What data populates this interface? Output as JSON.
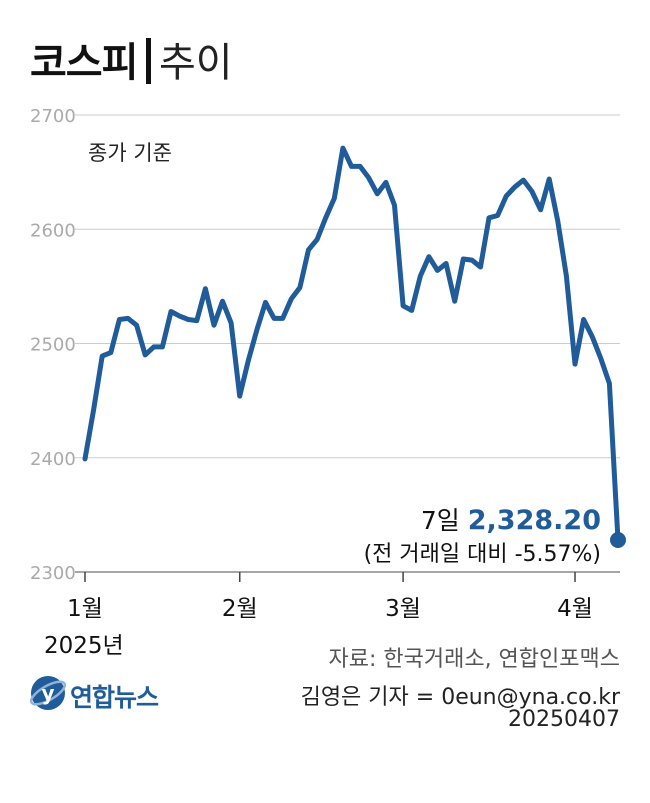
{
  "title": {
    "bold": "코스피",
    "light": "추이"
  },
  "basis_label": "종가 기준",
  "annotation": {
    "day": "7일",
    "value": "2,328.20",
    "change": "(전 거래일 대비 -5.57%)"
  },
  "year_label": "2025년",
  "source": "자료: 한국거래소, 연합인포맥스",
  "author": "김영은 기자 = 0eun@yna.co.kr",
  "date_code": "20250407",
  "logo": {
    "name": "yonhap-logo-icon",
    "text": "연합뉴스"
  },
  "colors": {
    "line": "#1f5c99",
    "grid": "#cccccc",
    "axis_text": "#aaaaaa"
  },
  "chart_data": {
    "type": "line",
    "title": "코스피 추이",
    "ylim": [
      2300,
      2700
    ],
    "yticks": [
      2300,
      2400,
      2500,
      2600,
      2700
    ],
    "xticks": [
      {
        "label": "1월",
        "index": 0
      },
      {
        "label": "2월",
        "index": 18
      },
      {
        "label": "3월",
        "index": 37
      },
      {
        "label": "4월",
        "index": 57
      }
    ],
    "grid": true,
    "values": [
      2399,
      2442,
      2489,
      2492,
      2521,
      2522,
      2516,
      2490,
      2497,
      2497,
      2528,
      2524,
      2521,
      2520,
      2548,
      2516,
      2537,
      2518,
      2454,
      2485,
      2512,
      2536,
      2522,
      2522,
      2539,
      2549,
      2582,
      2591,
      2610,
      2627,
      2671,
      2655,
      2655,
      2645,
      2631,
      2641,
      2621,
      2533,
      2529,
      2559,
      2576,
      2564,
      2570,
      2537,
      2574,
      2573,
      2567,
      2610,
      2612,
      2629,
      2637,
      2643,
      2633,
      2617,
      2644,
      2607,
      2559,
      2482,
      2521,
      2506,
      2487,
      2465,
      2328
    ]
  }
}
